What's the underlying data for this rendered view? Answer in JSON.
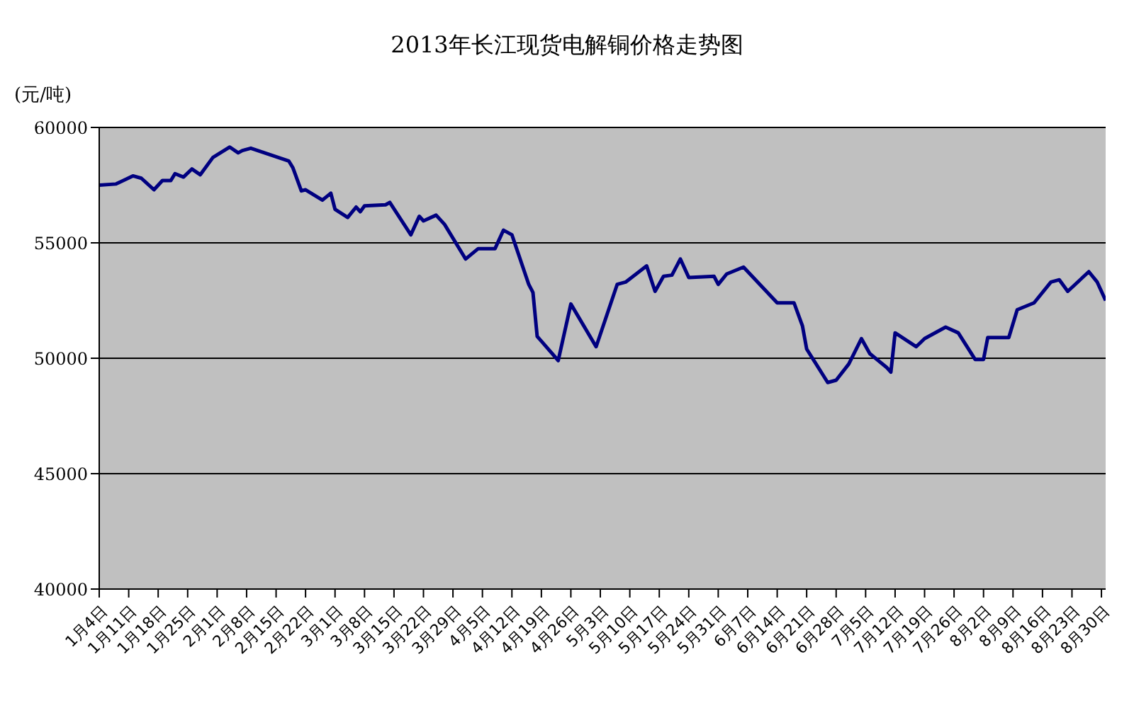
{
  "chart_data": {
    "type": "line",
    "title": "2013年长江现货电解铜价格走势图",
    "ylabel": "(元/吨)",
    "x": [
      "2013-01-04",
      "2013-01-08",
      "2013-01-12",
      "2013-01-14",
      "2013-01-17",
      "2013-01-19",
      "2013-01-21",
      "2013-01-22",
      "2013-01-24",
      "2013-01-26",
      "2013-01-28",
      "2013-01-31",
      "2013-02-04",
      "2013-02-06",
      "2013-02-07",
      "2013-02-09",
      "2013-02-18",
      "2013-02-19",
      "2013-02-21",
      "2013-02-22",
      "2013-02-26",
      "2013-02-28",
      "2013-03-01",
      "2013-03-04",
      "2013-03-06",
      "2013-03-07",
      "2013-03-08",
      "2013-03-13",
      "2013-03-14",
      "2013-03-19",
      "2013-03-21",
      "2013-03-22",
      "2013-03-25",
      "2013-03-27",
      "2013-04-01",
      "2013-04-04",
      "2013-04-08",
      "2013-04-10",
      "2013-04-12",
      "2013-04-16",
      "2013-04-17",
      "2013-04-18",
      "2013-04-23",
      "2013-04-26",
      "2013-05-02",
      "2013-05-07",
      "2013-05-09",
      "2013-05-14",
      "2013-05-16",
      "2013-05-18",
      "2013-05-20",
      "2013-05-22",
      "2013-05-24",
      "2013-05-30",
      "2013-05-31",
      "2013-06-02",
      "2013-06-06",
      "2013-06-14",
      "2013-06-18",
      "2013-06-20",
      "2013-06-21",
      "2013-06-26",
      "2013-06-28",
      "2013-07-01",
      "2013-07-04",
      "2013-07-06",
      "2013-07-10",
      "2013-07-11",
      "2013-07-12",
      "2013-07-17",
      "2013-07-19",
      "2013-07-24",
      "2013-07-27",
      "2013-07-31",
      "2013-08-02",
      "2013-08-03",
      "2013-08-08",
      "2013-08-10",
      "2013-08-14",
      "2013-08-18",
      "2013-08-20",
      "2013-08-22",
      "2013-08-27",
      "2013-08-29",
      "2013-08-31"
    ],
    "series": [
      {
        "color": "#000080",
        "values": [
          57500,
          57550,
          57900,
          57800,
          57300,
          57700,
          57700,
          58000,
          57850,
          58200,
          57950,
          58700,
          59150,
          58900,
          59000,
          59100,
          58550,
          58250,
          57250,
          57300,
          56850,
          57150,
          56450,
          56100,
          56550,
          56350,
          56600,
          56650,
          56750,
          55350,
          56150,
          55950,
          56200,
          55800,
          54300,
          54750,
          54750,
          55550,
          55350,
          53200,
          52850,
          50950,
          49900,
          52350,
          50500,
          53200,
          53300,
          54000,
          52900,
          53550,
          53600,
          54300,
          53500,
          53550,
          53200,
          53650,
          53950,
          52400,
          52400,
          51400,
          50400,
          48950,
          49050,
          49750,
          50850,
          50200,
          49600,
          49400,
          51100,
          50500,
          50850,
          51350,
          51100,
          49950,
          49950,
          50900,
          50900,
          52100,
          52400,
          53300,
          53400,
          52900,
          53750,
          53300,
          52500
        ]
      }
    ],
    "xlim": [
      "2013-01-04",
      "2013-08-31"
    ],
    "xticks": [
      {
        "value": "2013-01-04",
        "label": "1月4日"
      },
      {
        "value": "2013-01-11",
        "label": "1月11日"
      },
      {
        "value": "2013-01-18",
        "label": "1月18日"
      },
      {
        "value": "2013-01-25",
        "label": "1月25日"
      },
      {
        "value": "2013-02-01",
        "label": "2月1日"
      },
      {
        "value": "2013-02-08",
        "label": "2月8日"
      },
      {
        "value": "2013-02-15",
        "label": "2月15日"
      },
      {
        "value": "2013-02-22",
        "label": "2月22日"
      },
      {
        "value": "2013-03-01",
        "label": "3月1日"
      },
      {
        "value": "2013-03-08",
        "label": "3月8日"
      },
      {
        "value": "2013-03-15",
        "label": "3月15日"
      },
      {
        "value": "2013-03-22",
        "label": "3月22日"
      },
      {
        "value": "2013-03-29",
        "label": "3月29日"
      },
      {
        "value": "2013-04-05",
        "label": "4月5日"
      },
      {
        "value": "2013-04-12",
        "label": "4月12日"
      },
      {
        "value": "2013-04-19",
        "label": "4月19日"
      },
      {
        "value": "2013-04-26",
        "label": "4月26日"
      },
      {
        "value": "2013-05-03",
        "label": "5月3日"
      },
      {
        "value": "2013-05-10",
        "label": "5月10日"
      },
      {
        "value": "2013-05-17",
        "label": "5月17日"
      },
      {
        "value": "2013-05-24",
        "label": "5月24日"
      },
      {
        "value": "2013-05-31",
        "label": "5月31日"
      },
      {
        "value": "2013-06-07",
        "label": "6月7日"
      },
      {
        "value": "2013-06-14",
        "label": "6月14日"
      },
      {
        "value": "2013-06-21",
        "label": "6月21日"
      },
      {
        "value": "2013-06-28",
        "label": "6月28日"
      },
      {
        "value": "2013-07-05",
        "label": "7月5日"
      },
      {
        "value": "2013-07-12",
        "label": "7月12日"
      },
      {
        "value": "2013-07-19",
        "label": "7月19日"
      },
      {
        "value": "2013-07-26",
        "label": "7月26日"
      },
      {
        "value": "2013-08-02",
        "label": "8月2日"
      },
      {
        "value": "2013-08-09",
        "label": "8月9日"
      },
      {
        "value": "2013-08-16",
        "label": "8月16日"
      },
      {
        "value": "2013-08-23",
        "label": "8月23日"
      },
      {
        "value": "2013-08-30",
        "label": "8月30日"
      }
    ],
    "ylim": [
      40000,
      60000
    ],
    "yticks": [
      40000,
      45000,
      50000,
      55000,
      60000
    ],
    "grid": "y",
    "legend": false,
    "marker": "none",
    "line_style": "solid"
  }
}
